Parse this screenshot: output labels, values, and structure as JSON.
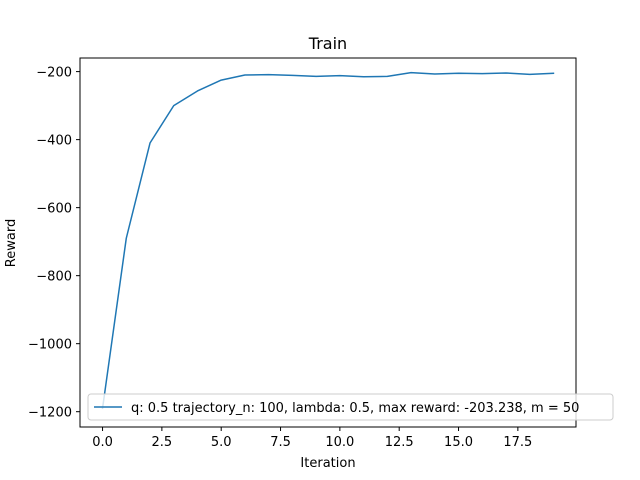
{
  "chart_data": {
    "type": "line",
    "title": "Train",
    "xlabel": "Iteration",
    "ylabel": "Reward",
    "xlim": [
      -0.95,
      19.95
    ],
    "ylim": [
      -1245,
      -160
    ],
    "xticks": [
      0.0,
      2.5,
      5.0,
      7.5,
      10.0,
      12.5,
      15.0,
      17.5
    ],
    "xtick_labels": [
      "0.0",
      "2.5",
      "5.0",
      "7.5",
      "10.0",
      "12.5",
      "15.0",
      "17.5"
    ],
    "yticks": [
      -1200,
      -1000,
      -800,
      -600,
      -400,
      -200
    ],
    "ytick_labels": [
      "−1200",
      "−1000",
      "−800",
      "−600",
      "−400",
      "−200"
    ],
    "grid": false,
    "legend_position": "bottom-right",
    "series": [
      {
        "name": "q: 0.5 trajectory_n: 100, lambda: 0.5, max reward: -203.238, m = 50",
        "color": "#1f77b4",
        "x": [
          0,
          1,
          2,
          3,
          4,
          5,
          6,
          7,
          8,
          9,
          10,
          11,
          12,
          13,
          14,
          15,
          16,
          17,
          18,
          19
        ],
        "y": [
          -1190,
          -690,
          -410,
          -300,
          -257,
          -225,
          -210,
          -209,
          -211,
          -214,
          -212,
          -215,
          -214,
          -203,
          -207,
          -205,
          -206,
          -204,
          -208,
          -205
        ]
      }
    ]
  }
}
